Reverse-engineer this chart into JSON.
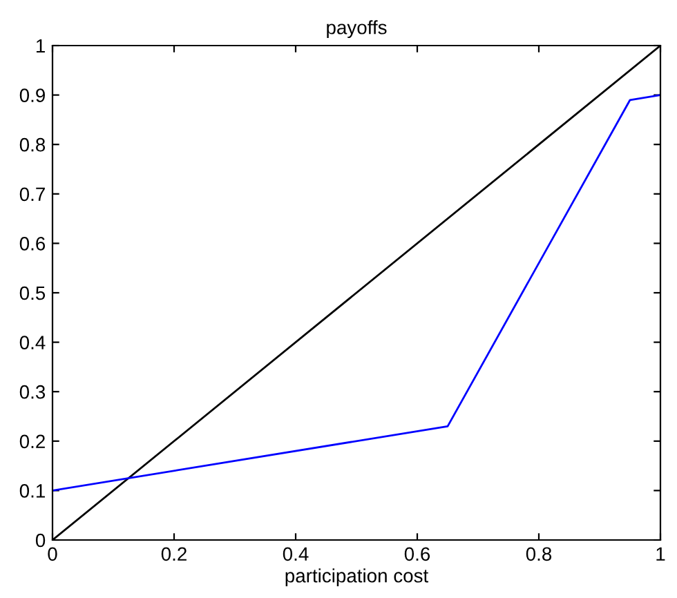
{
  "chart_data": {
    "type": "line",
    "title": "payoffs",
    "xlabel": "participation cost",
    "series": [
      {
        "color": "#000000",
        "x": [
          0,
          1
        ],
        "values": [
          0,
          1
        ]
      },
      {
        "color": "#0000ff",
        "x": [
          0,
          0.65,
          0.95,
          1
        ],
        "values": [
          0.1,
          0.23,
          0.89,
          0.9
        ]
      }
    ],
    "xlim": [
      0,
      1
    ],
    "ylim": [
      0,
      1
    ],
    "xticks": [
      0,
      0.2,
      0.4,
      0.6,
      0.8,
      1
    ],
    "yticks": [
      0,
      0.1,
      0.2,
      0.3,
      0.4,
      0.5,
      0.6,
      0.7,
      0.8,
      0.9,
      1
    ],
    "grid": false,
    "legend": false,
    "marker": "none",
    "line_style": "solid"
  }
}
